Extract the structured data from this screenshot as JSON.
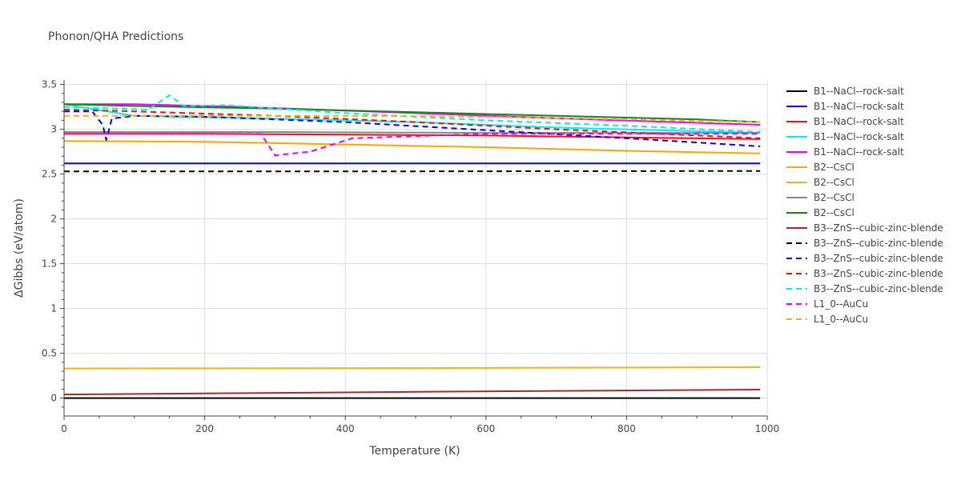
{
  "chart_data": {
    "type": "line",
    "title": "Phonon/QHA Predictions",
    "xlabel": "Temperature (K)",
    "ylabel": "ΔGibbs (eV/atom)",
    "xlim": [
      0,
      1000
    ],
    "ylim": [
      -0.2,
      3.55
    ],
    "xticks": [
      0,
      200,
      400,
      600,
      800,
      1000
    ],
    "xtick_labels": [
      "0",
      "200",
      "400",
      "600",
      "800",
      "1000"
    ],
    "yticks": [
      0,
      0.5,
      1,
      1.5,
      2,
      2.5,
      3,
      3.5
    ],
    "ytick_labels": [
      "0",
      "0.5",
      "1",
      "1.5",
      "2",
      "2.5",
      "3",
      "3.5"
    ],
    "grid": true,
    "legend_position": "right",
    "series": [
      {
        "name": "B1--NaCl--rock-salt",
        "color": "#000000",
        "dash": "solid",
        "x": [
          0,
          990
        ],
        "y": [
          0.0,
          0.0
        ]
      },
      {
        "name": "B1--NaCl--rock-salt",
        "color": "#0000ee",
        "dash": "solid",
        "x": [
          0,
          990
        ],
        "y": [
          2.62,
          2.62
        ]
      },
      {
        "name": "B1--NaCl--rock-salt",
        "color": "#ee1111",
        "dash": "solid",
        "x": [
          0,
          200,
          400,
          600,
          800,
          990
        ],
        "y": [
          2.95,
          2.95,
          2.94,
          2.93,
          2.91,
          2.89
        ]
      },
      {
        "name": "B1--NaCl--rock-salt",
        "color": "#00eeee",
        "dash": "solid",
        "x": [
          0,
          100,
          300,
          500,
          700,
          990
        ],
        "y": [
          3.28,
          3.15,
          3.12,
          3.08,
          3.02,
          2.96
        ]
      },
      {
        "name": "B1--NaCl--rock-salt",
        "color": "#ee00ee",
        "dash": "solid",
        "x": [
          0,
          100,
          250,
          500,
          750,
          990
        ],
        "y": [
          3.28,
          3.28,
          3.25,
          3.18,
          3.11,
          3.05
        ]
      },
      {
        "name": "B2--CsCl",
        "color": "#ffa500",
        "dash": "solid",
        "x": [
          0,
          200,
          400,
          600,
          800,
          990
        ],
        "y": [
          2.87,
          2.86,
          2.83,
          2.8,
          2.76,
          2.73
        ]
      },
      {
        "name": "B2--CsCl",
        "color": "#f5b01a",
        "dash": "solid",
        "x": [
          0,
          500,
          990
        ],
        "y": [
          0.33,
          0.335,
          0.345
        ]
      },
      {
        "name": "B2--CsCl",
        "color": "#888888",
        "dash": "solid",
        "x": [
          0,
          300,
          600,
          990
        ],
        "y": [
          2.97,
          2.97,
          2.96,
          2.96
        ]
      },
      {
        "name": "B2--CsCl",
        "color": "#118811",
        "dash": "solid",
        "x": [
          0,
          100,
          300,
          500,
          700,
          900,
          990
        ],
        "y": [
          3.28,
          3.26,
          3.23,
          3.19,
          3.15,
          3.11,
          3.08
        ]
      },
      {
        "name": "B3--ZnS--cubic-zinc-blende",
        "color": "#a52a2a",
        "dash": "solid",
        "x": [
          0,
          500,
          990
        ],
        "y": [
          0.04,
          0.07,
          0.095
        ]
      },
      {
        "name": "B3--ZnS--cubic-zinc-blende",
        "color": "#000000",
        "dash": "dash",
        "x": [
          0,
          500,
          990
        ],
        "y": [
          2.53,
          2.53,
          2.535
        ]
      },
      {
        "name": "B3--ZnS--cubic-zinc-blende",
        "color": "#0000ee",
        "dash": "dash",
        "x": [
          0,
          40,
          55,
          60,
          68,
          100,
          200,
          400,
          600,
          800,
          990
        ],
        "y": [
          3.2,
          3.2,
          3.05,
          2.88,
          3.12,
          3.15,
          3.14,
          3.08,
          2.99,
          2.9,
          2.81
        ]
      },
      {
        "name": "B3--ZnS--cubic-zinc-blende",
        "color": "#ee1111",
        "dash": "dash",
        "x": [
          0,
          100,
          300,
          500,
          700,
          990
        ],
        "y": [
          3.22,
          3.2,
          3.15,
          3.08,
          3.0,
          2.9
        ]
      },
      {
        "name": "B3--ZnS--cubic-zinc-blende",
        "color": "#00eeee",
        "dash": "dash",
        "x": [
          0,
          120,
          150,
          170,
          230,
          400,
          600,
          800,
          990
        ],
        "y": [
          3.25,
          3.22,
          3.38,
          3.26,
          3.27,
          3.18,
          3.1,
          3.04,
          2.97
        ]
      },
      {
        "name": "L1_0--AuCu",
        "color": "#ee00ee",
        "dash": "dash",
        "x": [
          0,
          200,
          280,
          300,
          350,
          410,
          600,
          800,
          990
        ],
        "y": [
          2.95,
          2.95,
          2.95,
          2.71,
          2.75,
          2.9,
          2.95,
          2.95,
          2.95
        ]
      },
      {
        "name": "L1_0--AuCu",
        "color": "#f5b01a",
        "dash": "dash",
        "x": [
          0,
          200,
          400,
          600,
          800,
          990
        ],
        "y": [
          3.15,
          3.15,
          3.15,
          3.14,
          3.11,
          3.08
        ]
      }
    ]
  }
}
